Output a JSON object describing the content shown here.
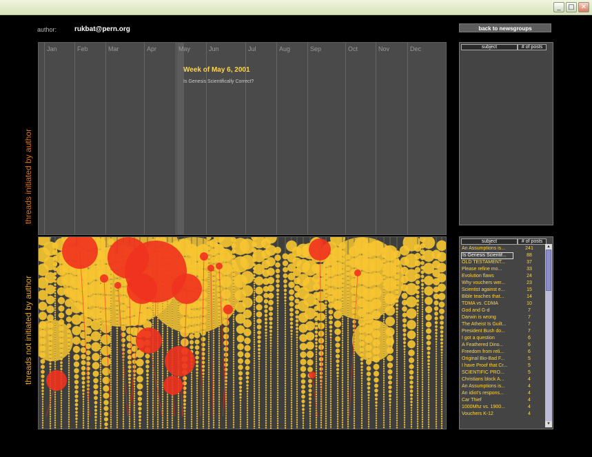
{
  "window": {
    "controls": [
      "_",
      "□",
      "✕"
    ]
  },
  "author": {
    "label": "author:",
    "value": "rukbat@pern.org"
  },
  "back_button": "back to newsgroups",
  "axis": {
    "top_label": "threads initiated by author",
    "bottom_label": "threads not initiated by author"
  },
  "timeline": {
    "months": [
      "Jan",
      "Feb",
      "Mar",
      "Apr",
      "May",
      "Jun",
      "Jul",
      "Aug",
      "Sep",
      "Oct",
      "Nov",
      "Dec"
    ],
    "selected_week": "Week of May 6, 2001",
    "selected_thread": "Is Genesis Scientifically Correct?"
  },
  "top_table": {
    "headers": [
      "subject",
      "# of posts"
    ],
    "rows": []
  },
  "bottom_table": {
    "headers": [
      "subject",
      "# of posts"
    ],
    "rows": [
      {
        "subject": "An Assumptions is...",
        "posts": "241"
      },
      {
        "subject": "Is Genesis Scientif...",
        "posts": "88"
      },
      {
        "subject": "OLD TESTAMENT...",
        "posts": "37"
      },
      {
        "subject": "Please refine mo...",
        "posts": "33"
      },
      {
        "subject": "Evolution flaws",
        "posts": "24"
      },
      {
        "subject": "Why vouchers wer...",
        "posts": "23"
      },
      {
        "subject": "Scientist against e...",
        "posts": "15"
      },
      {
        "subject": "Bible teaches that...",
        "posts": "14"
      },
      {
        "subject": "TDMA vs. CDMA",
        "posts": "10"
      },
      {
        "subject": "God and G-d",
        "posts": "7"
      },
      {
        "subject": "Darwin is wrong",
        "posts": "7"
      },
      {
        "subject": "The Atheist Is Guilt...",
        "posts": "7"
      },
      {
        "subject": "President Bush do...",
        "posts": "7"
      },
      {
        "subject": "I got a question",
        "posts": "6"
      },
      {
        "subject": "A Feathered Dino...",
        "posts": "6"
      },
      {
        "subject": "Freedom from reli...",
        "posts": "6"
      },
      {
        "subject": "Original Bio-Bad F...",
        "posts": "5"
      },
      {
        "subject": "I have Proof that Cr...",
        "posts": "5"
      },
      {
        "subject": "SCIENTIFIC PRO...",
        "posts": "5"
      },
      {
        "subject": "Christians block A...",
        "posts": "4"
      },
      {
        "subject": "An Assumptions is...",
        "posts": "4"
      },
      {
        "subject": "An idiot's respons...",
        "posts": "4"
      },
      {
        "subject": "Car Thief",
        "posts": "4"
      },
      {
        "subject": "1000Mhz vs. 1900...",
        "posts": "4"
      },
      {
        "subject": "Vouchers K-12",
        "posts": "4"
      }
    ]
  },
  "colors": {
    "author_post": "#f0321e",
    "other_post": "#f7c531",
    "accent": "#ffd54a"
  }
}
